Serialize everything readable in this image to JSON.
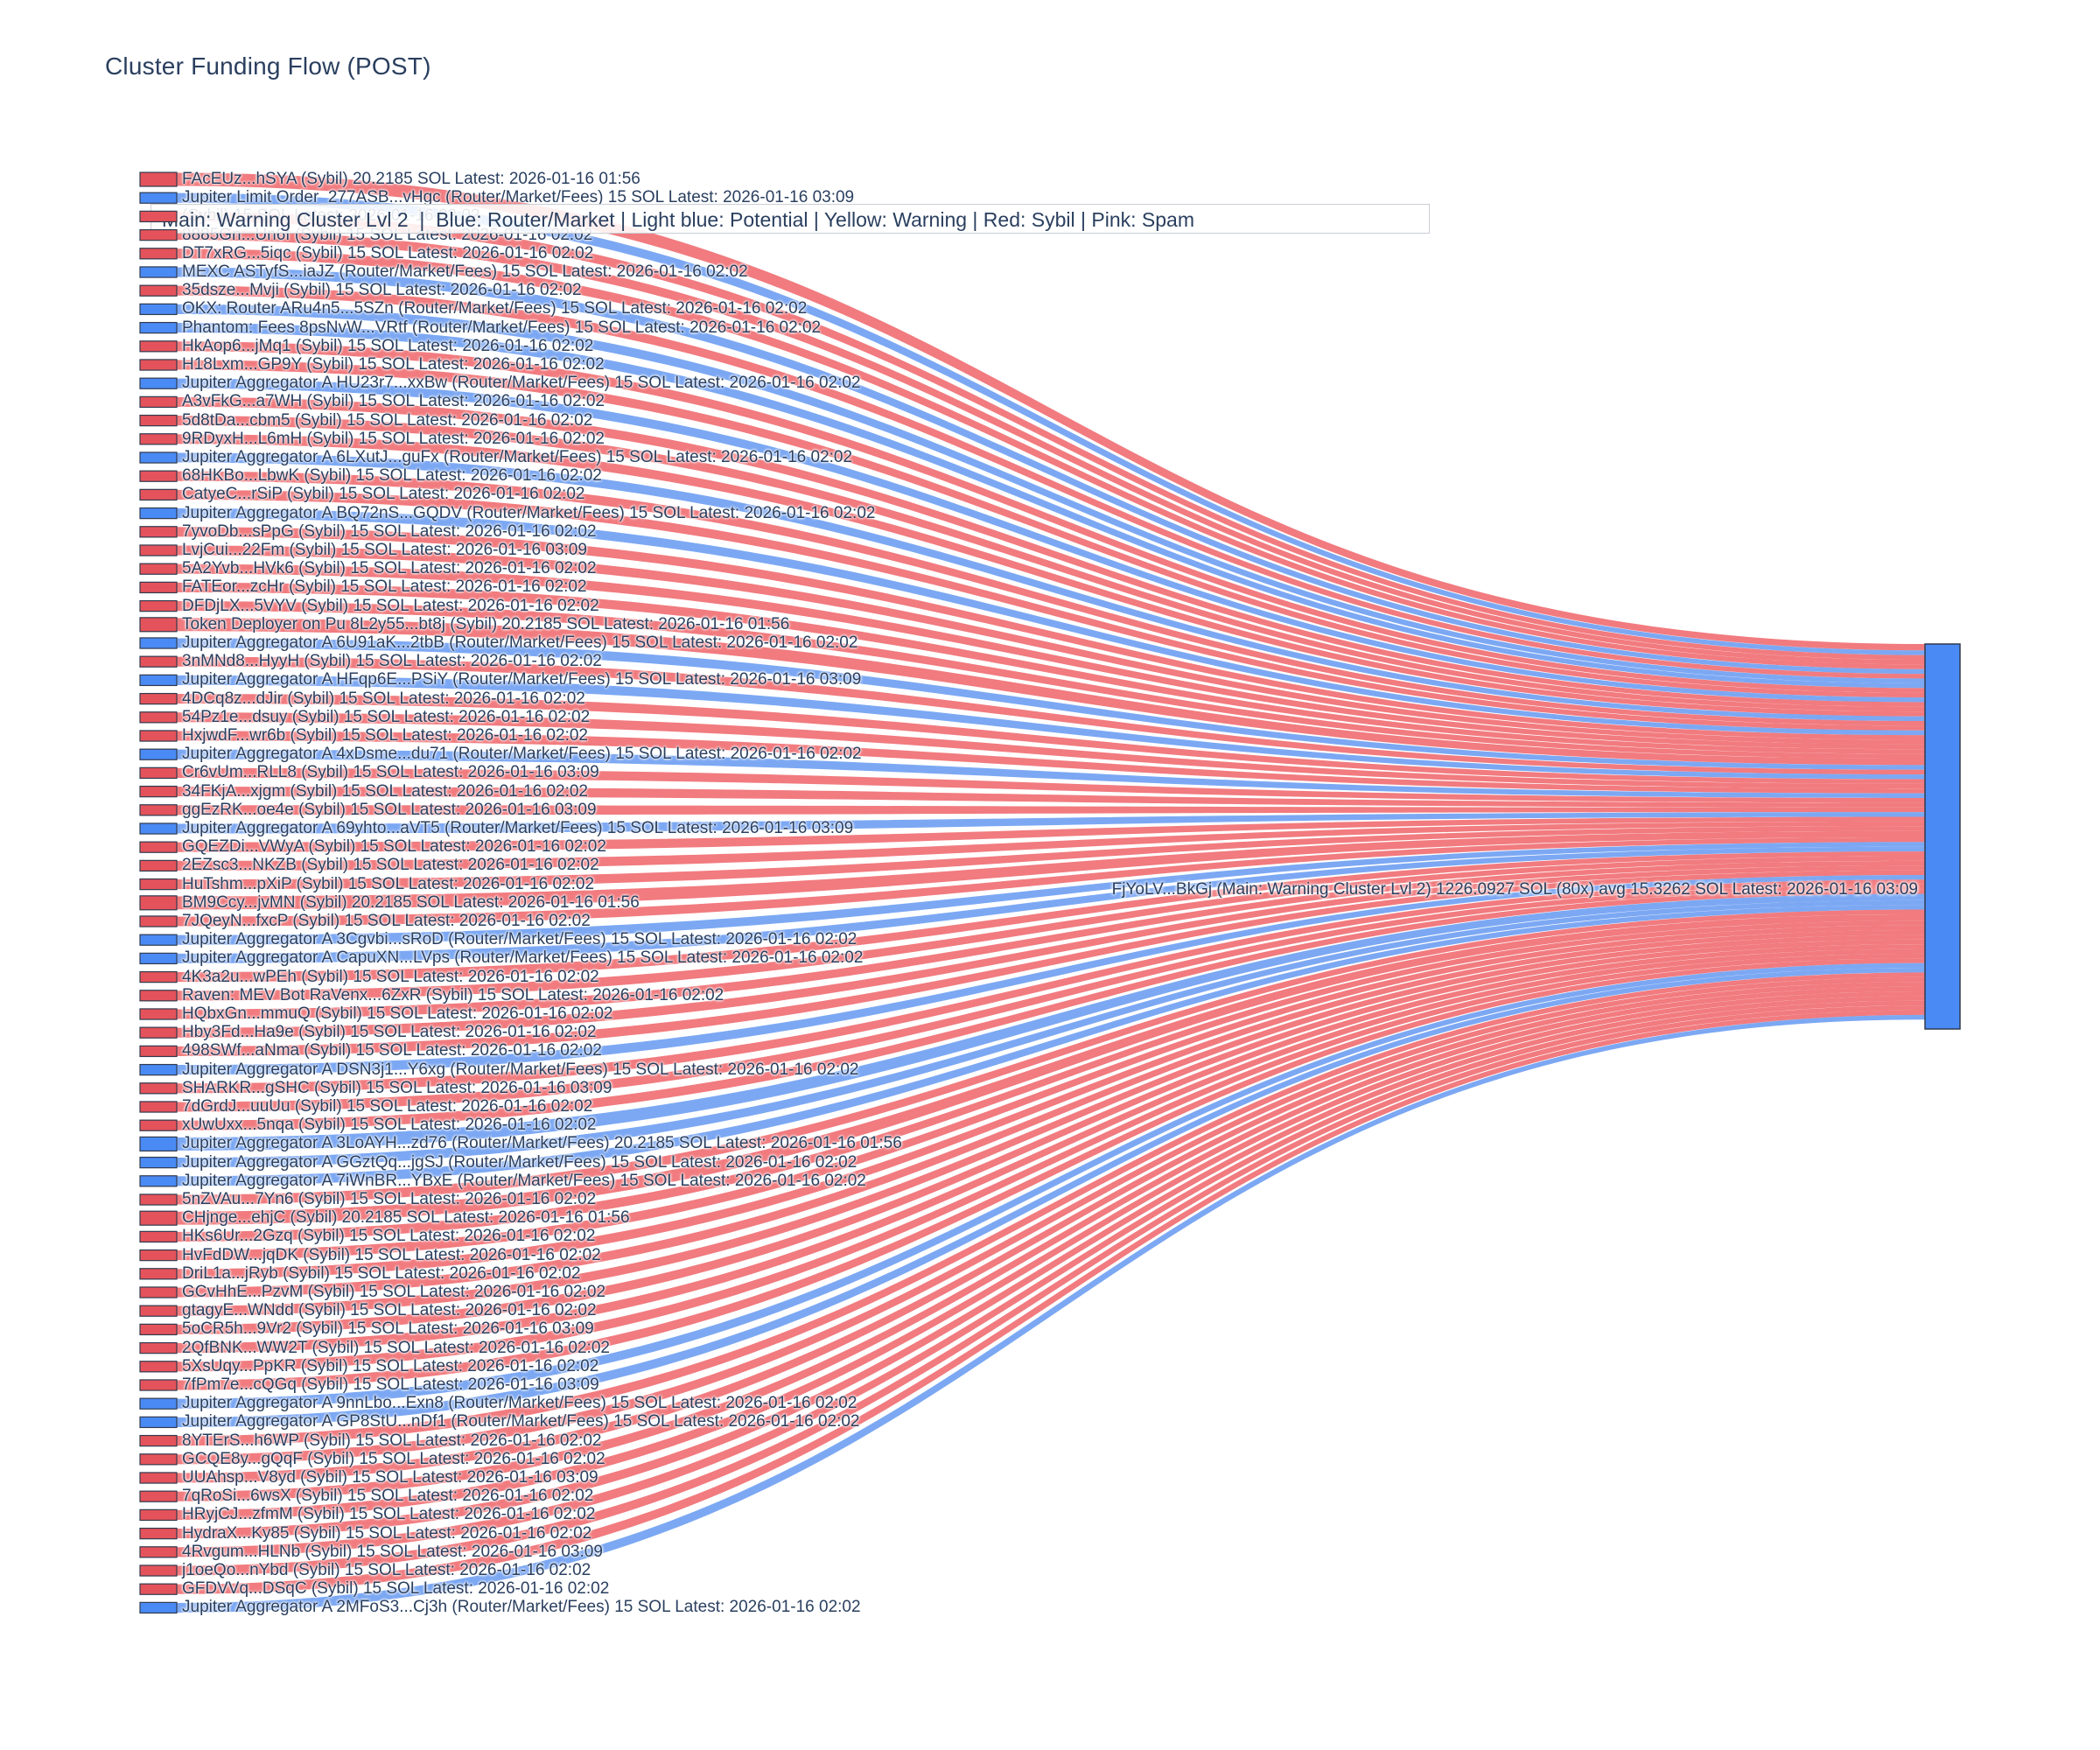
{
  "title": "Cluster Funding Flow (POST)",
  "legend_text": "Main: Warning Cluster Lvl 2  |  Blue: Router/Market | Light blue: Potential | Yellow: Warning | Red: Sybil | Pink: Spam",
  "colors": {
    "node_sybil": "#E4535B",
    "node_router": "#4A8AF4",
    "link_sybil": "#EE5A5F",
    "link_router": "#5B92F0",
    "node_border": "#303B4E",
    "text": "#2A3F5F",
    "legend_border": "#C9CDD4"
  },
  "chart_data": {
    "type": "sankey",
    "unit": "SOL",
    "target_node": {
      "display_label": "FjYoLV...BkGj (Main: Warning Cluster Lvl 2) 1226.0927 SOL (80x) avg 15.3262 SOL Latest: 2026-01-16 03:09",
      "name": "FjYoLV...BkGj",
      "cluster": "Main: Warning Cluster Lvl 2",
      "total_sol": 1226.0927,
      "tx_count": "80x",
      "avg_sol": 15.3262,
      "latest": "2026-01-16 03:09"
    },
    "sources": [
      {
        "label": "FAcEUz...hSYA (Sybil) 20.2185 SOL Latest: 2026-01-16 01:56",
        "kind": "sybil",
        "sol": 20.2185
      },
      {
        "label": "Jupiter Limit Order_277ASB...vHgc (Router/Market/Fees) 15 SOL Latest: 2026-01-16 03:09",
        "kind": "router",
        "sol": 15
      },
      {
        "label": "(Sybil) 15 SOL Latest: 2026-01-16 02:02",
        "kind": "sybil",
        "sol": 15,
        "obscured": true
      },
      {
        "label": "8885Gn...Un6f (Sybil) 15 SOL Latest: 2026-01-16 02:02",
        "kind": "sybil",
        "sol": 15
      },
      {
        "label": "DT7xRG...5iqc (Sybil) 15 SOL Latest: 2026-01-16 02:02",
        "kind": "sybil",
        "sol": 15
      },
      {
        "label": "MEXC ASTyfS...iaJZ (Router/Market/Fees) 15 SOL Latest: 2026-01-16 02:02",
        "kind": "router",
        "sol": 15
      },
      {
        "label": "35dsze...Mvji (Sybil) 15 SOL Latest: 2026-01-16 02:02",
        "kind": "sybil",
        "sol": 15
      },
      {
        "label": "OKX: Router ARu4n5...5SZn (Router/Market/Fees) 15 SOL Latest: 2026-01-16 02:02",
        "kind": "router",
        "sol": 15
      },
      {
        "label": "Phantom: Fees 8psNvW...VRtf (Router/Market/Fees) 15 SOL Latest: 2026-01-16 02:02",
        "kind": "router",
        "sol": 15
      },
      {
        "label": "HkAop6...jMq1 (Sybil) 15 SOL Latest: 2026-01-16 02:02",
        "kind": "sybil",
        "sol": 15
      },
      {
        "label": "H18Lxm...GP9Y (Sybil) 15 SOL Latest: 2026-01-16 02:02",
        "kind": "sybil",
        "sol": 15
      },
      {
        "label": "Jupiter Aggregator A HU23r7...xxBw (Router/Market/Fees) 15 SOL Latest: 2026-01-16 02:02",
        "kind": "router",
        "sol": 15
      },
      {
        "label": "A3vFkG...a7WH (Sybil) 15 SOL Latest: 2026-01-16 02:02",
        "kind": "sybil",
        "sol": 15
      },
      {
        "label": "5d8tDa...cbm5 (Sybil) 15 SOL Latest: 2026-01-16 02:02",
        "kind": "sybil",
        "sol": 15
      },
      {
        "label": "9RDyxH...L6mH (Sybil) 15 SOL Latest: 2026-01-16 02:02",
        "kind": "sybil",
        "sol": 15
      },
      {
        "label": "Jupiter Aggregator A 6LXutJ...guFx (Router/Market/Fees) 15 SOL Latest: 2026-01-16 02:02",
        "kind": "router",
        "sol": 15
      },
      {
        "label": "68HKBo...LbwK (Sybil) 15 SOL Latest: 2026-01-16 02:02",
        "kind": "sybil",
        "sol": 15
      },
      {
        "label": "CatyeC...rSiP (Sybil) 15 SOL Latest: 2026-01-16 02:02",
        "kind": "sybil",
        "sol": 15
      },
      {
        "label": "Jupiter Aggregator A BQ72nS...GQDV (Router/Market/Fees) 15 SOL Latest: 2026-01-16 02:02",
        "kind": "router",
        "sol": 15
      },
      {
        "label": "7yvoDb...sPpG (Sybil) 15 SOL Latest: 2026-01-16 02:02",
        "kind": "sybil",
        "sol": 15
      },
      {
        "label": "LvjCui...22Fm (Sybil) 15 SOL Latest: 2026-01-16 03:09",
        "kind": "sybil",
        "sol": 15
      },
      {
        "label": "5A2Yvb...HVk6 (Sybil) 15 SOL Latest: 2026-01-16 02:02",
        "kind": "sybil",
        "sol": 15
      },
      {
        "label": "FATEor...zcHr (Sybil) 15 SOL Latest: 2026-01-16 02:02",
        "kind": "sybil",
        "sol": 15
      },
      {
        "label": "DFDjLX...5VYV (Sybil) 15 SOL Latest: 2026-01-16 02:02",
        "kind": "sybil",
        "sol": 15
      },
      {
        "label": "Token Deployer on Pu 8L2y55...bt8j (Sybil) 20.2185 SOL Latest: 2026-01-16 01:56",
        "kind": "sybil",
        "sol": 20.2185
      },
      {
        "label": "Jupiter Aggregator A 6U91aK...2tbB (Router/Market/Fees) 15 SOL Latest: 2026-01-16 02:02",
        "kind": "router",
        "sol": 15
      },
      {
        "label": "3nMNd8...HyyH (Sybil) 15 SOL Latest: 2026-01-16 02:02",
        "kind": "sybil",
        "sol": 15
      },
      {
        "label": "Jupiter Aggregator A HFqp6E...PSiY (Router/Market/Fees) 15 SOL Latest: 2026-01-16 03:09",
        "kind": "router",
        "sol": 15
      },
      {
        "label": "4DCq8z...dJir (Sybil) 15 SOL Latest: 2026-01-16 02:02",
        "kind": "sybil",
        "sol": 15
      },
      {
        "label": "54Pz1e...dsuy (Sybil) 15 SOL Latest: 2026-01-16 02:02",
        "kind": "sybil",
        "sol": 15
      },
      {
        "label": "HxjwdF...wr6b (Sybil) 15 SOL Latest: 2026-01-16 02:02",
        "kind": "sybil",
        "sol": 15
      },
      {
        "label": "Jupiter Aggregator A 4xDsme...du71 (Router/Market/Fees) 15 SOL Latest: 2026-01-16 02:02",
        "kind": "router",
        "sol": 15
      },
      {
        "label": "Cr6vUm...RLL8 (Sybil) 15 SOL Latest: 2026-01-16 03:09",
        "kind": "sybil",
        "sol": 15
      },
      {
        "label": "34FKjA...xjgm (Sybil) 15 SOL Latest: 2026-01-16 02:02",
        "kind": "sybil",
        "sol": 15
      },
      {
        "label": "ggEzRK...oe4e (Sybil) 15 SOL Latest: 2026-01-16 03:09",
        "kind": "sybil",
        "sol": 15
      },
      {
        "label": "Jupiter Aggregator A 69yhto...aVT5 (Router/Market/Fees) 15 SOL Latest: 2026-01-16 03:09",
        "kind": "router",
        "sol": 15
      },
      {
        "label": "GQEZDi...VWyA (Sybil) 15 SOL Latest: 2026-01-16 02:02",
        "kind": "sybil",
        "sol": 15
      },
      {
        "label": "2EZsc3...NKZB (Sybil) 15 SOL Latest: 2026-01-16 02:02",
        "kind": "sybil",
        "sol": 15
      },
      {
        "label": "HuTshm...pXiP (Sybil) 15 SOL Latest: 2026-01-16 02:02",
        "kind": "sybil",
        "sol": 15
      },
      {
        "label": "BM9Ccy...jvMN (Sybil) 20.2185 SOL Latest: 2026-01-16 01:56",
        "kind": "sybil",
        "sol": 20.2185
      },
      {
        "label": "7JQeyN...fxcP (Sybil) 15 SOL Latest: 2026-01-16 02:02",
        "kind": "sybil",
        "sol": 15
      },
      {
        "label": "Jupiter Aggregator A 3Cgvbi...sRoD (Router/Market/Fees) 15 SOL Latest: 2026-01-16 02:02",
        "kind": "router",
        "sol": 15
      },
      {
        "label": "Jupiter Aggregator A CapuXN...LVps (Router/Market/Fees) 15 SOL Latest: 2026-01-16 02:02",
        "kind": "router",
        "sol": 15
      },
      {
        "label": "4K3a2u...wPEh (Sybil) 15 SOL Latest: 2026-01-16 02:02",
        "kind": "sybil",
        "sol": 15
      },
      {
        "label": "Raven: MEV Bot RaVenx...6ZxR (Sybil) 15 SOL Latest: 2026-01-16 02:02",
        "kind": "sybil",
        "sol": 15
      },
      {
        "label": "HQbxGn...mmuQ (Sybil) 15 SOL Latest: 2026-01-16 02:02",
        "kind": "sybil",
        "sol": 15
      },
      {
        "label": "Hby3Fd...Ha9e (Sybil) 15 SOL Latest: 2026-01-16 02:02",
        "kind": "sybil",
        "sol": 15
      },
      {
        "label": "498SWf...aNma (Sybil) 15 SOL Latest: 2026-01-16 02:02",
        "kind": "sybil",
        "sol": 15
      },
      {
        "label": "Jupiter Aggregator A DSN3j1...Y6xg (Router/Market/Fees) 15 SOL Latest: 2026-01-16 02:02",
        "kind": "router",
        "sol": 15
      },
      {
        "label": "SHARKR...gSHC (Sybil) 15 SOL Latest: 2026-01-16 03:09",
        "kind": "sybil",
        "sol": 15
      },
      {
        "label": "7dGrdJ...uuUu (Sybil) 15 SOL Latest: 2026-01-16 02:02",
        "kind": "sybil",
        "sol": 15
      },
      {
        "label": "xUwUxx...5nqa (Sybil) 15 SOL Latest: 2026-01-16 02:02",
        "kind": "sybil",
        "sol": 15
      },
      {
        "label": "Jupiter Aggregator A 3LoAYH...zd76 (Router/Market/Fees) 20.2185 SOL Latest: 2026-01-16 01:56",
        "kind": "router",
        "sol": 20.2185
      },
      {
        "label": "Jupiter Aggregator A GGztQq...jgSJ (Router/Market/Fees) 15 SOL Latest: 2026-01-16 02:02",
        "kind": "router",
        "sol": 15
      },
      {
        "label": "Jupiter Aggregator A 7iWnBR...YBxE (Router/Market/Fees) 15 SOL Latest: 2026-01-16 02:02",
        "kind": "router",
        "sol": 15
      },
      {
        "label": "5nZVAu...7Yn6 (Sybil) 15 SOL Latest: 2026-01-16 02:02",
        "kind": "sybil",
        "sol": 15
      },
      {
        "label": "CHjnge...ehjC (Sybil) 20.2185 SOL Latest: 2026-01-16 01:56",
        "kind": "sybil",
        "sol": 20.2185
      },
      {
        "label": "HKs6Ur...2Gzq (Sybil) 15 SOL Latest: 2026-01-16 02:02",
        "kind": "sybil",
        "sol": 15
      },
      {
        "label": "HvFdDW...jqDK (Sybil) 15 SOL Latest: 2026-01-16 02:02",
        "kind": "sybil",
        "sol": 15
      },
      {
        "label": "DriL1a...jRyb (Sybil) 15 SOL Latest: 2026-01-16 02:02",
        "kind": "sybil",
        "sol": 15
      },
      {
        "label": "GCvHhE...PzvM (Sybil) 15 SOL Latest: 2026-01-16 02:02",
        "kind": "sybil",
        "sol": 15
      },
      {
        "label": "gtagyE...WNdd (Sybil) 15 SOL Latest: 2026-01-16 02:02",
        "kind": "sybil",
        "sol": 15
      },
      {
        "label": "5oCR5h...9Vr2 (Sybil) 15 SOL Latest: 2026-01-16 03:09",
        "kind": "sybil",
        "sol": 15
      },
      {
        "label": "2QfBNK...WW2T (Sybil) 15 SOL Latest: 2026-01-16 02:02",
        "kind": "sybil",
        "sol": 15
      },
      {
        "label": "5XsUqy...PpKR (Sybil) 15 SOL Latest: 2026-01-16 02:02",
        "kind": "sybil",
        "sol": 15
      },
      {
        "label": "7fPm7e...cQGq (Sybil) 15 SOL Latest: 2026-01-16 03:09",
        "kind": "sybil",
        "sol": 15
      },
      {
        "label": "Jupiter Aggregator A 9nnLbo...Exn8 (Router/Market/Fees) 15 SOL Latest: 2026-01-16 02:02",
        "kind": "router",
        "sol": 15
      },
      {
        "label": "Jupiter Aggregator A GP8StU...nDf1 (Router/Market/Fees) 15 SOL Latest: 2026-01-16 02:02",
        "kind": "router",
        "sol": 15
      },
      {
        "label": "8YTErS...h6WP (Sybil) 15 SOL Latest: 2026-01-16 02:02",
        "kind": "sybil",
        "sol": 15
      },
      {
        "label": "GCQE8y...gQqF (Sybil) 15 SOL Latest: 2026-01-16 02:02",
        "kind": "sybil",
        "sol": 15
      },
      {
        "label": "UUAhsp...V8yd (Sybil) 15 SOL Latest: 2026-01-16 03:09",
        "kind": "sybil",
        "sol": 15
      },
      {
        "label": "7qRoSi...6wsX (Sybil) 15 SOL Latest: 2026-01-16 02:02",
        "kind": "sybil",
        "sol": 15
      },
      {
        "label": "HRyjCJ...zfmM (Sybil) 15 SOL Latest: 2026-01-16 02:02",
        "kind": "sybil",
        "sol": 15
      },
      {
        "label": "HydraX...Ky85 (Sybil) 15 SOL Latest: 2026-01-16 02:02",
        "kind": "sybil",
        "sol": 15
      },
      {
        "label": "4Rvgum...HLNb (Sybil) 15 SOL Latest: 2026-01-16 03:09",
        "kind": "sybil",
        "sol": 15
      },
      {
        "label": "j1oeQo...nYbd (Sybil) 15 SOL Latest: 2026-01-16 02:02",
        "kind": "sybil",
        "sol": 15
      },
      {
        "label": "GFDVVq...DSqC (Sybil) 15 SOL Latest: 2026-01-16 02:02",
        "kind": "sybil",
        "sol": 15
      },
      {
        "label": "Jupiter Aggregator A 2MFoS3...Cj3h (Router/Market/Fees) 15 SOL Latest: 2026-01-16 02:02",
        "kind": "router",
        "sol": 15
      }
    ]
  }
}
